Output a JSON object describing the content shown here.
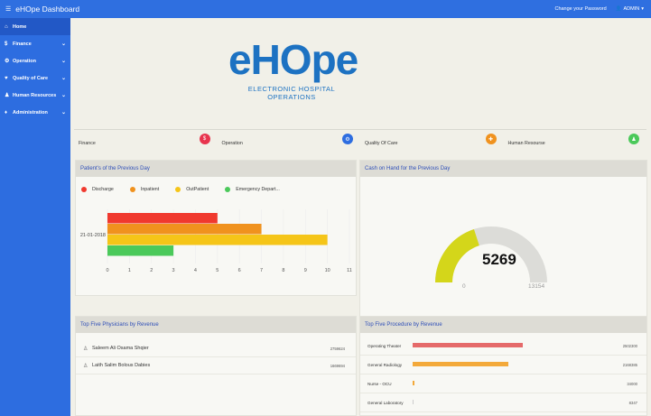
{
  "app": {
    "title": "eHOpe Dashboard"
  },
  "topbar": {
    "change_password": "Change your Password",
    "user": "ADMIN"
  },
  "sidebar": {
    "items": [
      {
        "label": "Home",
        "icon": "home-icon",
        "active": true
      },
      {
        "label": "Finance",
        "icon": "dollar-icon",
        "has_children": true
      },
      {
        "label": "Operation",
        "icon": "cogs-icon",
        "has_children": true
      },
      {
        "label": "Quality of Care",
        "icon": "heartbeat-icon",
        "has_children": true
      },
      {
        "label": "Human Resources",
        "icon": "users-icon",
        "has_children": true
      },
      {
        "label": "Administration",
        "icon": "admin-icon",
        "has_children": true
      }
    ]
  },
  "logo": {
    "text": "eHOpe",
    "subtitle": "ELECTRONIC HOSPITAL OPERATIONS"
  },
  "modules": [
    {
      "label": "Finance",
      "icon": "dollar-icon",
      "color": "#e8344e",
      "glyph": "$"
    },
    {
      "label": "Operation",
      "icon": "cogs-icon",
      "color": "#2d6de0",
      "glyph": "⚙"
    },
    {
      "label": "Quality Of Care",
      "icon": "heartbeat-icon",
      "color": "#f0921e",
      "glyph": "✚"
    },
    {
      "label": "Human Resourse",
      "icon": "users-icon",
      "color": "#4bc95a",
      "glyph": "♟"
    }
  ],
  "patients_panel": {
    "title": "Patient's of the Previous Day",
    "legend": [
      {
        "label": "Discharge",
        "color": "#f0392e"
      },
      {
        "label": "Inpatient",
        "color": "#f0921e"
      },
      {
        "label": "OutPatient",
        "color": "#f5c518"
      },
      {
        "label": "Emergency Depart...",
        "color": "#4bc95a"
      }
    ]
  },
  "chart_data": {
    "type": "bar",
    "orientation": "horizontal",
    "categories": [
      "21-01-2018"
    ],
    "series": [
      {
        "name": "Discharge",
        "values": [
          5
        ]
      },
      {
        "name": "Inpatient",
        "values": [
          7
        ]
      },
      {
        "name": "OutPatient",
        "values": [
          10
        ]
      },
      {
        "name": "Emergency Depart...",
        "values": [
          3
        ]
      }
    ],
    "colors": [
      "#f0392e",
      "#f0921e",
      "#f5c518",
      "#4bc95a"
    ],
    "xlim": [
      0,
      11
    ],
    "xticks": [
      "0",
      "1",
      "2",
      "3",
      "4",
      "5",
      "6",
      "7",
      "8",
      "9",
      "10",
      "11"
    ]
  },
  "cash_panel": {
    "title": "Cash on Hand for the Previous Day",
    "gauge": {
      "value": "5269",
      "value_num": 5269,
      "min": "0",
      "max": "13154",
      "max_num": 13154,
      "fill_color": "#d4d61a",
      "track_color": "#dcdcd8"
    }
  },
  "physicians_panel": {
    "title": "Top Five Physicians by Revenue",
    "rows": [
      {
        "name": "Saleem Ali Osama Shqier",
        "value": "2759624"
      },
      {
        "name": "Laith Salim Bolous Dabies",
        "value": "1669694"
      }
    ]
  },
  "procedures_panel": {
    "title": "Top Five Procedure by Revenue",
    "rows": [
      {
        "label": "Operating Theater",
        "value": "2502300",
        "fraction": 0.61,
        "color": "#e56a6a"
      },
      {
        "label": "General Radiology",
        "value": "2168385",
        "fraction": 0.53,
        "color": "#f3a93a"
      },
      {
        "label": "Nurse - OCU",
        "value": "34000",
        "fraction": 0.012,
        "color": "#f3a93a"
      },
      {
        "label": "General Laboratory",
        "value": "8347",
        "fraction": 0.004,
        "color": "#ccc"
      }
    ]
  }
}
